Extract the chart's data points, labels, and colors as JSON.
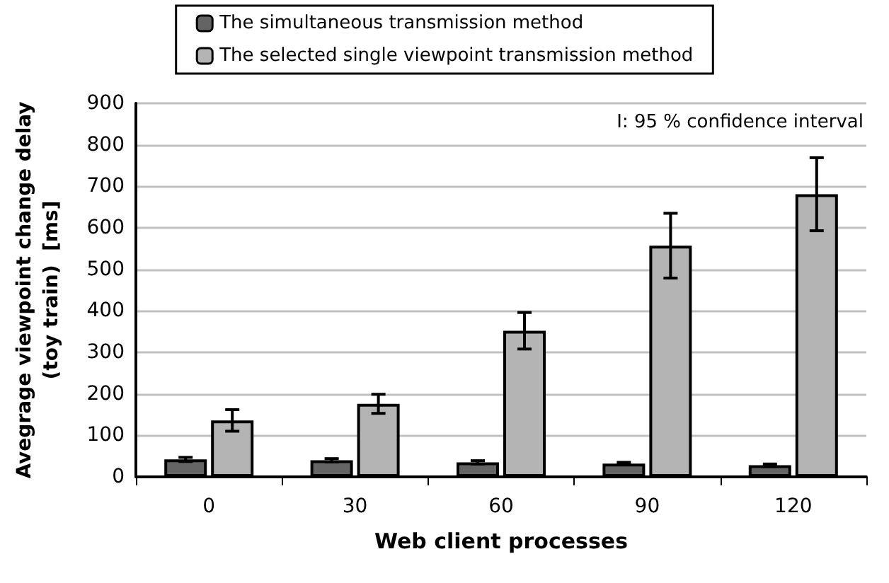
{
  "chart_data": {
    "type": "bar",
    "xlabel": "Web client processes",
    "ylabel": "Avegrage viewpoint change delay\n(toy train)  [ms]",
    "categories": [
      "0",
      "30",
      "60",
      "90",
      "120"
    ],
    "series": [
      {
        "name": "The simultaneous transmission method",
        "color": "#646464",
        "values": [
          42,
          40,
          35,
          32,
          28
        ],
        "errors": [
          5,
          4,
          4,
          3,
          3
        ]
      },
      {
        "name": "The selected single viewpoint transmission method",
        "color": "#b4b4b4",
        "values": [
          136,
          176,
          352,
          557,
          681
        ],
        "errors": [
          26,
          23,
          44,
          78,
          88
        ]
      }
    ],
    "ylim": [
      0,
      900
    ],
    "yticks": [
      0,
      100,
      200,
      300,
      400,
      500,
      600,
      700,
      800,
      900
    ],
    "grid": "y",
    "legend": "top",
    "annotations": [
      "I: 95 % confidence interval"
    ]
  }
}
